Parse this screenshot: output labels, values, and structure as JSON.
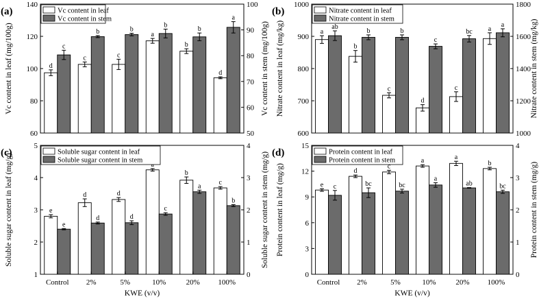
{
  "figure": {
    "xlabel": "KWE (v/v)"
  },
  "chart_data": [
    {
      "type": "bar",
      "label": "(a)",
      "categories": [
        "Control",
        "2%",
        "5%",
        "10%",
        "20%",
        "100%"
      ],
      "series": [
        {
          "name": "Vc content in leaf",
          "axis": "left",
          "color": "#ffffff",
          "values": [
            97.4,
            102.6,
            102.6,
            117.2,
            110.8,
            94.3
          ],
          "errors": [
            1.8,
            1.5,
            3.2,
            1.5,
            1.5,
            0.6
          ],
          "letters": [
            "d",
            "c",
            "c",
            "a",
            "b",
            "d"
          ]
        },
        {
          "name": "Vc content in stem",
          "axis": "right",
          "color": "#6b6b6b",
          "values": [
            80.3,
            87.4,
            88.2,
            88.6,
            87.3,
            91.0
          ],
          "errors": [
            1.8,
            0.4,
            0.5,
            1.7,
            1.5,
            2.2
          ],
          "letters": [
            "c",
            "b",
            "b",
            "b",
            "b",
            "a"
          ]
        }
      ],
      "ylabel": "Vc content in leaf (mg/100g)",
      "ylim": [
        60,
        140
      ],
      "yticks": [
        60,
        80,
        100,
        120,
        140
      ],
      "ylabel_right": "Vc content in stem (mg/100g)",
      "ylim_right": [
        50,
        100
      ],
      "yticks_right": [
        50,
        60,
        70,
        80,
        90,
        100
      ],
      "legend": "top-left"
    },
    {
      "type": "bar",
      "label": "(b)",
      "categories": [
        "Control",
        "2%",
        "5%",
        "10%",
        "20%",
        "100%"
      ],
      "series": [
        {
          "name": "Nitrate content in leaf",
          "axis": "left",
          "color": "#ffffff",
          "values": [
            890,
            838,
            717,
            678,
            713,
            893
          ],
          "errors": [
            12,
            18,
            8,
            10,
            15,
            18
          ],
          "letters": [
            "a",
            "b",
            "c",
            "d",
            "c",
            "a"
          ]
        },
        {
          "name": "Nitrate content in stem",
          "axis": "right",
          "color": "#6b6b6b",
          "values": [
            1604,
            1594,
            1594,
            1538,
            1585,
            1622
          ],
          "errors": [
            30,
            15,
            15,
            15,
            20,
            25
          ],
          "letters": [
            "ab",
            "b",
            "b",
            "c",
            "bc",
            "a"
          ]
        }
      ],
      "ylabel": "Nitrate content in leaf (mg/kg)",
      "ylim": [
        600,
        1000
      ],
      "yticks": [
        600,
        700,
        800,
        900,
        1000
      ],
      "ylabel_right": "Nitrate content in stem (mg/kg)",
      "ylim_right": [
        1000,
        1800
      ],
      "yticks_right": [
        1000,
        1200,
        1400,
        1600,
        1800
      ],
      "legend": "top-left"
    },
    {
      "type": "bar",
      "label": "(c)",
      "categories": [
        "Control",
        "2%",
        "5%",
        "10%",
        "20%",
        "100%"
      ],
      "series": [
        {
          "name": "Soluble sugar content in leaf",
          "axis": "left",
          "color": "#ffffff",
          "values": [
            2.8,
            3.22,
            3.32,
            4.24,
            3.92,
            3.68
          ],
          "errors": [
            0.05,
            0.12,
            0.06,
            0.04,
            0.1,
            0.04
          ],
          "letters": [
            "e",
            "d",
            "d",
            "a",
            "b",
            "c"
          ]
        },
        {
          "name": "Soluble sugar content in stem",
          "axis": "right",
          "color": "#6b6b6b",
          "values": [
            1.4,
            1.59,
            1.6,
            1.87,
            2.56,
            2.13
          ],
          "errors": [
            0.02,
            0.03,
            0.06,
            0.04,
            0.05,
            0.03
          ],
          "letters": [
            "e",
            "d",
            "d",
            "c",
            "a",
            "b"
          ]
        }
      ],
      "ylabel": "Soluble sugar content in leaf (mg/g)",
      "ylim": [
        1,
        5
      ],
      "yticks": [
        1,
        2,
        3,
        4,
        5
      ],
      "ylabel_right": "Soluble sugar content in stem (mg/g)",
      "ylim_right": [
        0,
        4
      ],
      "yticks_right": [
        0,
        1,
        2,
        3,
        4
      ],
      "legend": "top-left"
    },
    {
      "type": "bar",
      "label": "(d)",
      "categories": [
        "Control",
        "2%",
        "5%",
        "10%",
        "20%",
        "100%"
      ],
      "series": [
        {
          "name": "Protein content in leaf",
          "axis": "left",
          "color": "#ffffff",
          "values": [
            9.8,
            11.4,
            11.9,
            12.6,
            12.9,
            12.3
          ],
          "errors": [
            0.15,
            0.15,
            0.2,
            0.15,
            0.25,
            0.15
          ],
          "letters": [
            "e",
            "d",
            "c",
            "a",
            "a",
            "b"
          ]
        },
        {
          "name": "Protein content in stem",
          "axis": "right",
          "color": "#6b6b6b",
          "values": [
            2.45,
            2.53,
            2.58,
            2.77,
            2.68,
            2.56
          ],
          "errors": [
            0.15,
            0.15,
            0.06,
            0.07,
            0.01,
            0.05
          ],
          "letters": [
            "c",
            "bc",
            "bc",
            "a",
            "ab",
            "bc"
          ]
        }
      ],
      "ylabel": "Protein content in leaf (mg/g)",
      "ylim": [
        0,
        15
      ],
      "yticks": [
        0,
        3,
        6,
        9,
        12,
        15
      ],
      "ylabel_right": "Protein content in stem (mg/g)",
      "ylim_right": [
        0,
        4
      ],
      "yticks_right": [
        0,
        1,
        2,
        3,
        4
      ],
      "legend": "top-left"
    }
  ]
}
